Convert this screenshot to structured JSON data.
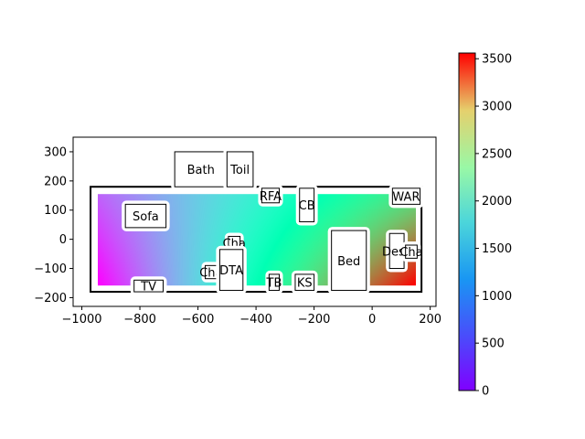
{
  "chart_data": {
    "type": "heatmap",
    "title": "",
    "xlabel": "",
    "ylabel": "",
    "xlim": [
      -1030,
      220
    ],
    "ylim": [
      -230,
      350
    ],
    "xticks": [
      -1000,
      -800,
      -600,
      -400,
      -200,
      0,
      200
    ],
    "yticks": [
      -200,
      -100,
      0,
      100,
      200,
      300
    ],
    "xtick_labels": [
      "−1000",
      "−800",
      "−600",
      "−400",
      "−200",
      "0",
      "200"
    ],
    "ytick_labels": [
      "−200",
      "−100",
      "0",
      "100",
      "200",
      "300"
    ],
    "colormap": "rainbow",
    "colorbar": {
      "min": 0,
      "max": 3560,
      "ticks": [
        0,
        500,
        1000,
        1500,
        2000,
        2500,
        3000,
        3500
      ],
      "tick_labels": [
        "0",
        "500",
        "1000",
        "1500",
        "2000",
        "2500",
        "3000",
        "3500"
      ]
    },
    "field_value_corners": {
      "left_bottom": 0,
      "left_top": 450,
      "right_bottom": 3560,
      "right_top": 2350,
      "center": 1500
    },
    "walls": {
      "outer": {
        "x0": -970,
        "x1": 170,
        "y0": -180,
        "y1": 180
      },
      "bath": {
        "x0": -680,
        "x1": -500,
        "y0": 180,
        "y1": 300
      },
      "toilet": {
        "x0": -500,
        "x1": -410,
        "y0": 180,
        "y1": 300
      }
    },
    "furniture": [
      {
        "label": "Bath",
        "x0": -680,
        "x1": -500,
        "y0": 180,
        "y1": 300
      },
      {
        "label": "Toil",
        "x0": -500,
        "x1": -410,
        "y0": 180,
        "y1": 300
      },
      {
        "label": "Sofa",
        "x0": -850,
        "x1": -710,
        "y0": 40,
        "y1": 120
      },
      {
        "label": "RFA",
        "x0": -380,
        "x1": -320,
        "y0": 125,
        "y1": 175
      },
      {
        "label": "CB",
        "x0": -250,
        "x1": -200,
        "y0": 60,
        "y1": 175
      },
      {
        "label": "WAR",
        "x0": 70,
        "x1": 165,
        "y0": 120,
        "y1": 175
      },
      {
        "label": "Cha",
        "x0": -495,
        "x1": -455,
        "y0": -35,
        "y1": 10
      },
      {
        "label": "Cha",
        "x0": -575,
        "x1": -535,
        "y0": -135,
        "y1": -90
      },
      {
        "label": "DTA",
        "x0": -525,
        "x1": -445,
        "y0": -175,
        "y1": -35
      },
      {
        "label": "TB",
        "x0": -355,
        "x1": -320,
        "y0": -175,
        "y1": -120
      },
      {
        "label": "KS",
        "x0": -265,
        "x1": -200,
        "y0": -175,
        "y1": -120
      },
      {
        "label": "Bed",
        "x0": -140,
        "x1": -20,
        "y0": -175,
        "y1": 30
      },
      {
        "label": "Desk",
        "x0": 60,
        "x1": 110,
        "y0": -100,
        "y1": 20
      },
      {
        "label": "Cha",
        "x0": 115,
        "x1": 155,
        "y0": -65,
        "y1": -20
      },
      {
        "label": "TV",
        "x0": -820,
        "x1": -720,
        "y0": -180,
        "y1": -140
      }
    ]
  }
}
